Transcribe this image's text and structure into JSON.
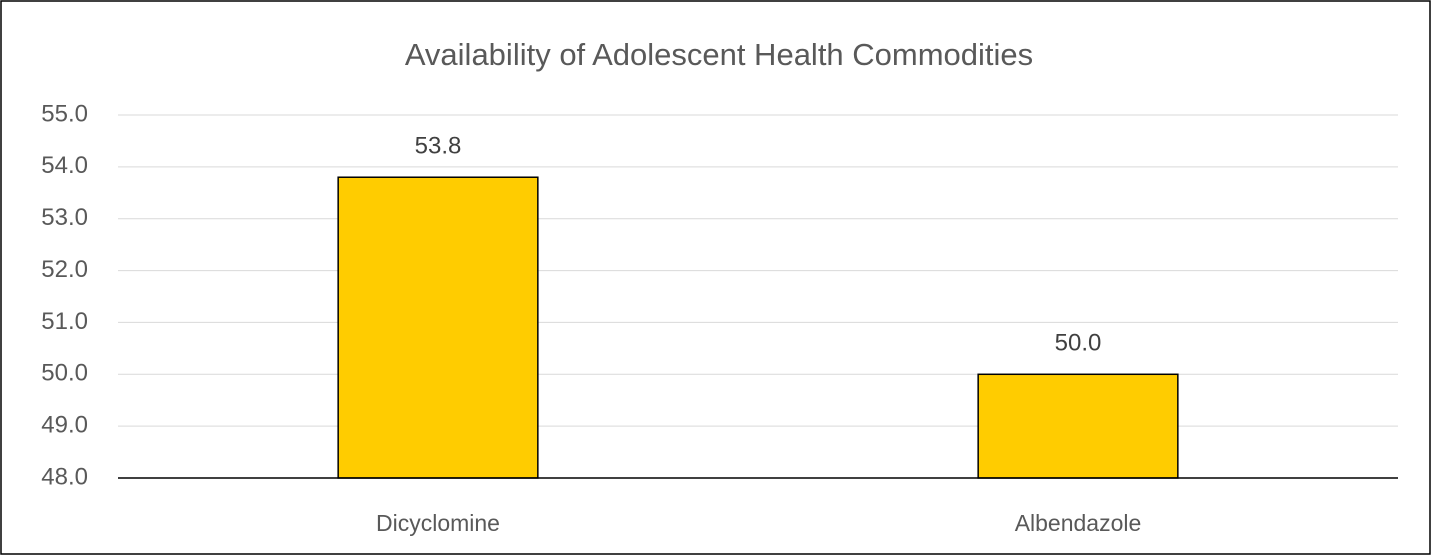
{
  "chart_data": {
    "type": "bar",
    "title": "Availability of Adolescent Health Commodities",
    "categories": [
      "Dicyclomine",
      "Albendazole"
    ],
    "values": [
      53.8,
      50.0
    ],
    "value_labels": [
      "53.8",
      "50.0"
    ],
    "color": "#ffcc00",
    "ylim": [
      48,
      55
    ],
    "yticks": [
      {
        "value": 48,
        "label": "48.0"
      },
      {
        "value": 49,
        "label": "49.0"
      },
      {
        "value": 50,
        "label": "50.0"
      },
      {
        "value": 51,
        "label": "51.0"
      },
      {
        "value": 52,
        "label": "52.0"
      },
      {
        "value": 53,
        "label": "53.0"
      },
      {
        "value": 54,
        "label": "54.0"
      },
      {
        "value": 55,
        "label": "55.0"
      }
    ],
    "grid": true
  }
}
